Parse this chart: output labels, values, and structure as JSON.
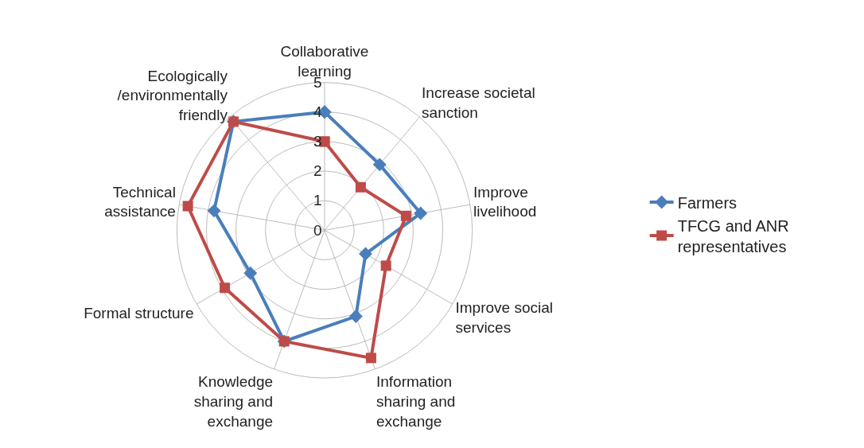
{
  "chart_data": {
    "type": "radar",
    "categories": [
      "Collaborative\nlearning",
      "Increase societal\nsanction",
      "Improve\nlivelihood",
      "Improve social\nservices",
      "Information\nsharing and\nexchange",
      "Knowledge\nsharing and\nexchange",
      "Formal structure",
      "Technical\nassistance",
      "Ecologically\n/environmentally\nfriendly"
    ],
    "series": [
      {
        "name": "Farmers",
        "color": "#4a7ebb",
        "marker": "diamond",
        "values": [
          4.0,
          2.9,
          3.3,
          1.6,
          3.1,
          4.0,
          2.9,
          3.8,
          4.8
        ]
      },
      {
        "name": "TFCG and ANR\nrepresentatives",
        "color": "#be4b48",
        "marker": "square",
        "values": [
          3.0,
          1.9,
          2.8,
          2.4,
          4.6,
          4.0,
          3.9,
          4.7,
          4.8
        ]
      }
    ],
    "ylim": [
      0,
      5
    ],
    "yticks": [
      0,
      1,
      2,
      3,
      4,
      5
    ],
    "grid": true,
    "legend": "right"
  }
}
